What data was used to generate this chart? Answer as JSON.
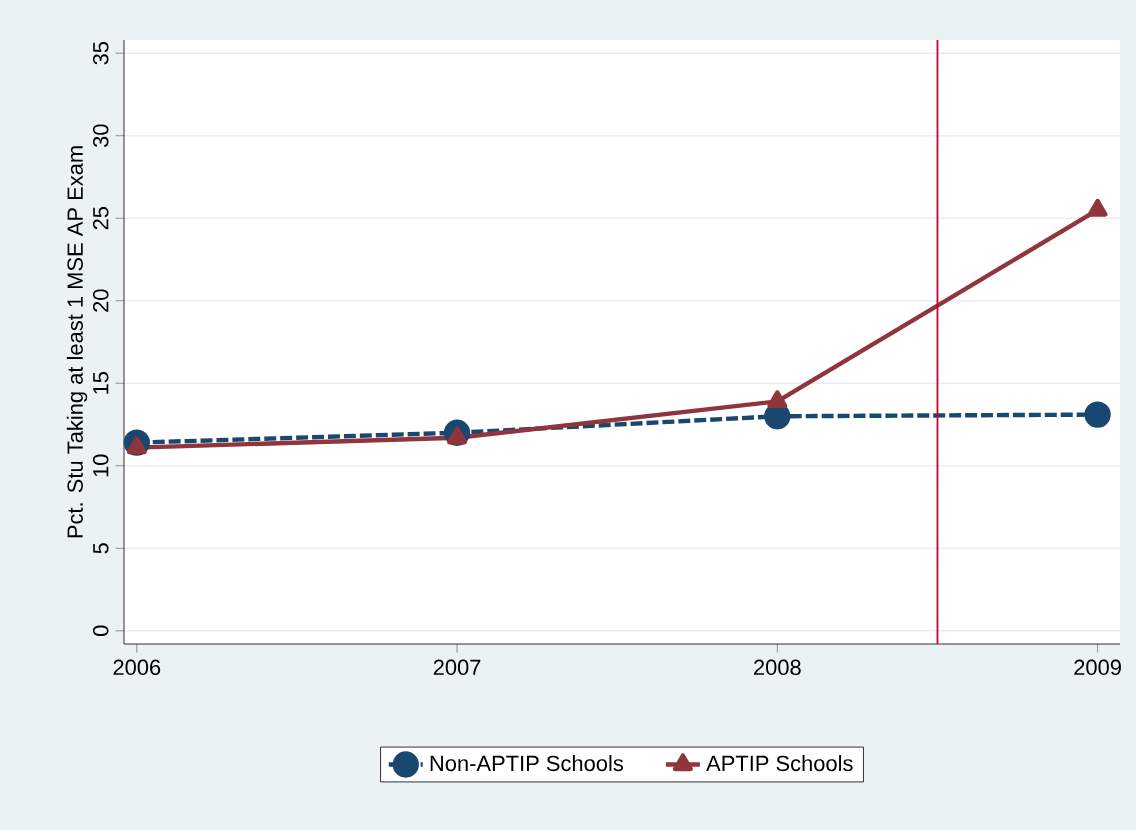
{
  "chart_data": {
    "type": "line",
    "ylabel": "Pct. Stu Taking at least 1 MSE AP Exam",
    "x": [
      2006,
      2007,
      2008,
      2009
    ],
    "series": [
      {
        "name": "Non-APTIP Schools",
        "color": "#1a476f",
        "values": [
          11.4,
          12.0,
          13.0,
          13.1
        ],
        "marker": "circle",
        "line_style": "dashed"
      },
      {
        "name": "APTIP Schools",
        "color": "#90353b",
        "values": [
          11.1,
          11.7,
          13.9,
          25.5
        ],
        "marker": "triangle",
        "line_style": "solid"
      }
    ],
    "xlim": [
      2005.96,
      2009.07
    ],
    "ylim": [
      -0.8,
      35.8
    ],
    "xticks": [
      2006,
      2007,
      2008,
      2009
    ],
    "yticks": [
      0,
      5,
      10,
      15,
      20,
      25,
      30,
      35
    ],
    "ref_lines": [
      {
        "axis": "x",
        "value": 2008.5,
        "color": "#c10534"
      }
    ],
    "grid": "y",
    "legend": "bottom"
  }
}
